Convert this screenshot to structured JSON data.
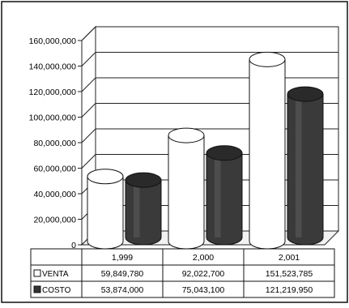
{
  "chart_data": {
    "type": "bar",
    "style": "3d-cylinder",
    "title": "",
    "xlabel": "",
    "ylabel": "",
    "categories": [
      "1,999",
      "2,000",
      "2,001"
    ],
    "ylim": [
      0,
      160000000
    ],
    "yticks": [
      0,
      20000000,
      40000000,
      60000000,
      80000000,
      100000000,
      120000000,
      140000000,
      160000000
    ],
    "ytick_labels": [
      "0",
      "20,000,000",
      "40,000,000",
      "60,000,000",
      "80,000,000",
      "100,000,000",
      "120,000,000",
      "140,000,000",
      "160,000,000"
    ],
    "grid": true,
    "legend": "data-table",
    "series": [
      {
        "name": "VENTA",
        "values": [
          59849780,
          92022700,
          151523785
        ],
        "labels": [
          "59,849,780",
          "92,022,700",
          "151,523,785"
        ],
        "color": "#ffffff"
      },
      {
        "name": "COSTO",
        "values": [
          53874000,
          75043100,
          121219950
        ],
        "labels": [
          "53,874,000",
          "75,043,100",
          "121,219,950"
        ],
        "color": "#333333"
      }
    ]
  }
}
